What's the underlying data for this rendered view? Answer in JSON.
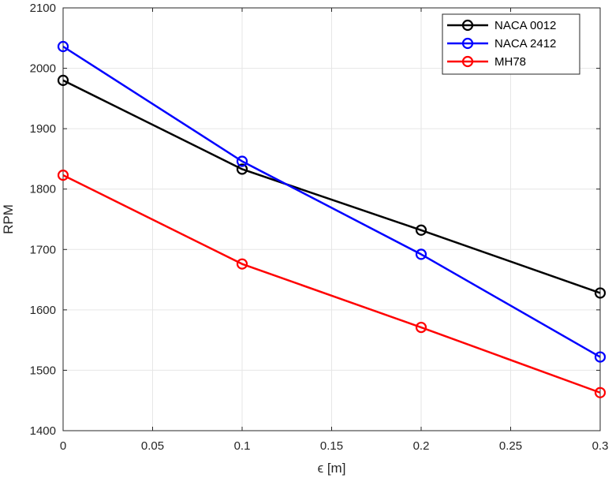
{
  "chart_data": {
    "type": "line",
    "title": "",
    "xlabel": "ϵ [m]",
    "ylabel": "RPM",
    "xlim": [
      0,
      0.3
    ],
    "ylim": [
      1400,
      2100
    ],
    "xticks": [
      0,
      0.05,
      0.1,
      0.15,
      0.2,
      0.25,
      0.3
    ],
    "xtick_labels": [
      "0",
      "0.05",
      "0.1",
      "0.15",
      "0.2",
      "0.25",
      "0.3"
    ],
    "yticks": [
      1400,
      1500,
      1600,
      1700,
      1800,
      1900,
      2000,
      2100
    ],
    "ytick_labels": [
      "1400",
      "1500",
      "1600",
      "1700",
      "1800",
      "1900",
      "2000",
      "2100"
    ],
    "grid": true,
    "legend_position": "top-right",
    "x": [
      0,
      0.1,
      0.2,
      0.3
    ],
    "series": [
      {
        "name": "NACA 0012",
        "color": "#000000",
        "marker": "circle-open",
        "values": [
          1980,
          1833,
          1732,
          1628
        ]
      },
      {
        "name": "NACA 2412",
        "color": "#0000ff",
        "marker": "circle-open",
        "values": [
          2036,
          1846,
          1692,
          1522
        ]
      },
      {
        "name": "MH78",
        "color": "#ff0000",
        "marker": "circle-open",
        "values": [
          1823,
          1676,
          1571,
          1463
        ]
      }
    ]
  }
}
